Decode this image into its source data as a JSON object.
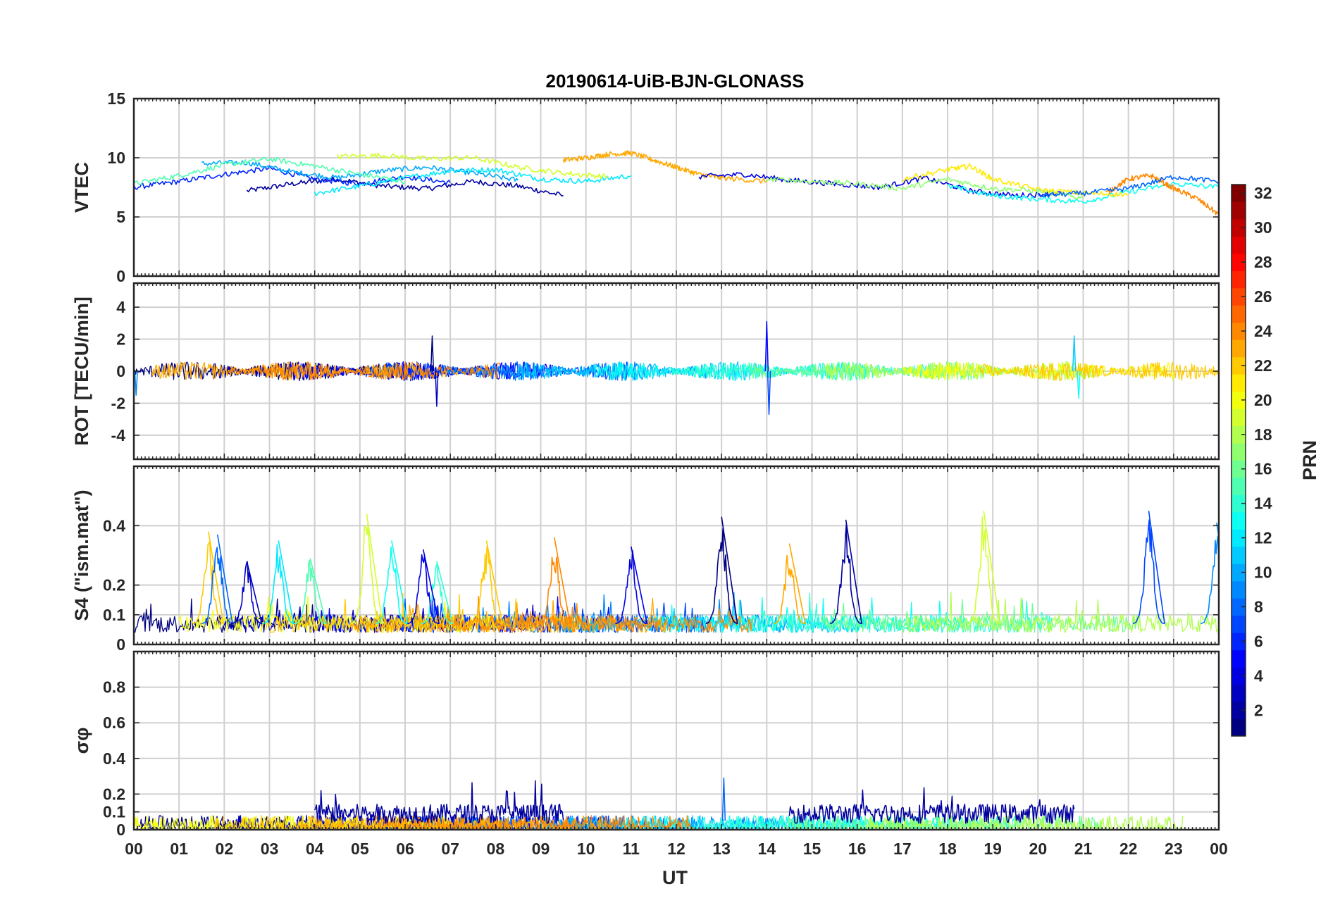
{
  "title": "20190614-UiB-BJN-GLONASS",
  "x_axis": {
    "label": "UT",
    "tick_labels": [
      "00",
      "01",
      "02",
      "03",
      "04",
      "05",
      "06",
      "07",
      "08",
      "09",
      "10",
      "11",
      "12",
      "13",
      "14",
      "15",
      "16",
      "17",
      "18",
      "19",
      "20",
      "21",
      "22",
      "23",
      "00"
    ],
    "range_hours": [
      0,
      24
    ]
  },
  "colorbar": {
    "label": "PRN",
    "range": [
      1,
      32
    ],
    "tick_values": [
      2,
      4,
      6,
      8,
      10,
      12,
      14,
      16,
      18,
      20,
      22,
      24,
      26,
      28,
      30,
      32
    ],
    "tick_labels": [
      "2",
      "4",
      "6",
      "8",
      "10",
      "12",
      "14",
      "16",
      "18",
      "20",
      "22",
      "24",
      "26",
      "28",
      "30",
      "32"
    ],
    "colormap": "jet"
  },
  "chart_data": [
    {
      "type": "line",
      "panel": "vtec",
      "ylabel": "VTEC",
      "ylim": [
        0,
        15
      ],
      "yticks": [
        0,
        5,
        10,
        15
      ],
      "ytick_labels": [
        "0",
        "5",
        "10",
        "15"
      ],
      "grid": true,
      "typical_range": [
        6,
        10.5
      ],
      "series": [
        {
          "prn": 2,
          "x": [
            2.5,
            3.5,
            4.5,
            5.5,
            6.5,
            7.5,
            8.5,
            9.5
          ],
          "y": [
            7.2,
            7.8,
            8.2,
            7.6,
            7.4,
            8.0,
            7.6,
            6.8
          ]
        },
        {
          "prn": 6,
          "x": [
            0,
            1,
            2,
            3,
            4,
            5,
            6,
            7
          ],
          "y": [
            7.5,
            8.0,
            8.6,
            9.1,
            8.2,
            7.8,
            8.4,
            7.9
          ]
        },
        {
          "prn": 10,
          "x": [
            1.5,
            2.5,
            3.5,
            4.5,
            5.5,
            6.5,
            7.5,
            8.5
          ],
          "y": [
            9.5,
            9.6,
            8.8,
            8.3,
            8.9,
            9.2,
            8.7,
            8.1
          ]
        },
        {
          "prn": 12,
          "x": [
            4,
            5,
            6,
            7,
            8,
            9,
            10,
            11
          ],
          "y": [
            7.0,
            7.6,
            8.3,
            8.9,
            9.0,
            8.2,
            8.0,
            8.5
          ]
        },
        {
          "prn": 15,
          "x": [
            0,
            1,
            2,
            3,
            4,
            5,
            6
          ],
          "y": [
            7.8,
            8.5,
            9.4,
            9.9,
            9.3,
            8.6,
            8.0
          ]
        },
        {
          "prn": 19,
          "x": [
            4.5,
            5.5,
            6.5,
            7.5,
            8.5,
            9.5,
            10.5
          ],
          "y": [
            10.1,
            10.2,
            9.9,
            10.0,
            9.2,
            8.7,
            8.4
          ]
        },
        {
          "prn": 23,
          "x": [
            9.5,
            10,
            10.5,
            11,
            11.5,
            12,
            12.5,
            13,
            14
          ],
          "y": [
            9.8,
            10.0,
            10.3,
            10.4,
            9.8,
            9.2,
            8.6,
            8.3,
            8.0
          ]
        },
        {
          "prn": 4,
          "x": [
            12.5,
            13.5,
            14.5,
            15.5,
            16.5,
            17.5,
            18.5,
            19.5,
            20.5
          ],
          "y": [
            8.4,
            8.6,
            8.1,
            7.8,
            7.5,
            8.3,
            7.2,
            6.8,
            7.0
          ]
        },
        {
          "prn": 13,
          "x": [
            18,
            19,
            20,
            21,
            22,
            23,
            24
          ],
          "y": [
            7.6,
            6.8,
            6.5,
            6.3,
            7.1,
            7.8,
            7.5
          ]
        },
        {
          "prn": 17,
          "x": [
            14,
            15,
            16,
            17,
            18,
            19,
            20,
            21
          ],
          "y": [
            8.2,
            8.0,
            7.8,
            7.4,
            8.2,
            7.4,
            7.2,
            6.6
          ]
        },
        {
          "prn": 21,
          "x": [
            17,
            18,
            18.5,
            19,
            20,
            21,
            22
          ],
          "y": [
            8.2,
            9.0,
            9.3,
            8.2,
            7.3,
            7.0,
            6.9
          ]
        },
        {
          "prn": 24,
          "x": [
            21.5,
            22,
            22.5,
            23,
            23.5,
            24
          ],
          "y": [
            7.0,
            8.2,
            8.5,
            7.4,
            6.6,
            5.2
          ]
        },
        {
          "prn": 8,
          "x": [
            20,
            21,
            22,
            23,
            24
          ],
          "y": [
            6.8,
            7.0,
            7.4,
            8.4,
            8.0
          ]
        }
      ]
    },
    {
      "type": "line",
      "panel": "rot",
      "ylabel": "ROT [TECU/min]",
      "ylim": [
        -5.5,
        5.5
      ],
      "yticks": [
        -4,
        -2,
        0,
        2,
        4
      ],
      "ytick_labels": [
        "-4",
        "-2",
        "0",
        "2",
        "4"
      ],
      "grid": true,
      "typical_range": [
        -0.6,
        0.6
      ],
      "peaks": [
        {
          "x": 6.6,
          "y": 2.2
        },
        {
          "x": 6.7,
          "y": -2.2
        },
        {
          "x": 14.0,
          "y": 3.1
        },
        {
          "x": 14.05,
          "y": -2.7
        },
        {
          "x": 0.05,
          "y": -1.5
        },
        {
          "x": 20.8,
          "y": 2.2
        },
        {
          "x": 20.9,
          "y": -1.7
        }
      ]
    },
    {
      "type": "line",
      "panel": "s4",
      "ylabel": "S4 (\"ism.mat\")",
      "ylim": [
        0,
        0.6
      ],
      "yticks": [
        0,
        0.1,
        0.2,
        0.4
      ],
      "ytick_labels": [
        "0",
        "0.1",
        "0.2",
        "0.4"
      ],
      "grid": true,
      "baseline": [
        0.04,
        0.1
      ],
      "peaks": [
        {
          "prn": 22,
          "x": 1.65,
          "y": 0.38
        },
        {
          "prn": 8,
          "x": 1.85,
          "y": 0.37
        },
        {
          "prn": 3,
          "x": 2.5,
          "y": 0.28
        },
        {
          "prn": 12,
          "x": 3.2,
          "y": 0.35
        },
        {
          "prn": 15,
          "x": 3.9,
          "y": 0.29
        },
        {
          "prn": 19,
          "x": 5.15,
          "y": 0.44
        },
        {
          "prn": 13,
          "x": 5.7,
          "y": 0.35
        },
        {
          "prn": 14,
          "x": 6.7,
          "y": 0.28
        },
        {
          "prn": 4,
          "x": 6.4,
          "y": 0.32
        },
        {
          "prn": 22,
          "x": 7.8,
          "y": 0.35
        },
        {
          "prn": 24,
          "x": 9.3,
          "y": 0.36
        },
        {
          "prn": 4,
          "x": 11.0,
          "y": 0.33
        },
        {
          "prn": 1,
          "x": 13.0,
          "y": 0.43
        },
        {
          "prn": 23,
          "x": 14.5,
          "y": 0.34
        },
        {
          "prn": 2,
          "x": 15.75,
          "y": 0.42
        },
        {
          "prn": 19,
          "x": 18.8,
          "y": 0.45
        },
        {
          "prn": 7,
          "x": 22.45,
          "y": 0.45
        },
        {
          "prn": 9,
          "x": 23.95,
          "y": 0.41
        }
      ]
    },
    {
      "type": "line",
      "panel": "sigma_phi",
      "ylabel": "σφ",
      "ylim": [
        0,
        1
      ],
      "yticks": [
        0,
        0.1,
        0.2,
        0.4,
        0.6,
        0.8
      ],
      "ytick_labels": [
        "0",
        "0.1",
        "0.2",
        "0.4",
        "0.6",
        "0.8"
      ],
      "grid": true,
      "baseline": [
        0,
        0.08
      ],
      "elevated_intervals": [
        {
          "prn": 2,
          "x_range": [
            4.0,
            9.5
          ],
          "level": 0.12,
          "max": 0.26
        },
        {
          "prn": 2,
          "x_range": [
            14.5,
            20.8
          ],
          "level": 0.12,
          "max": 0.23
        }
      ],
      "peaks": [
        {
          "prn": 8,
          "x": 13.05,
          "y": 0.29
        }
      ]
    }
  ]
}
